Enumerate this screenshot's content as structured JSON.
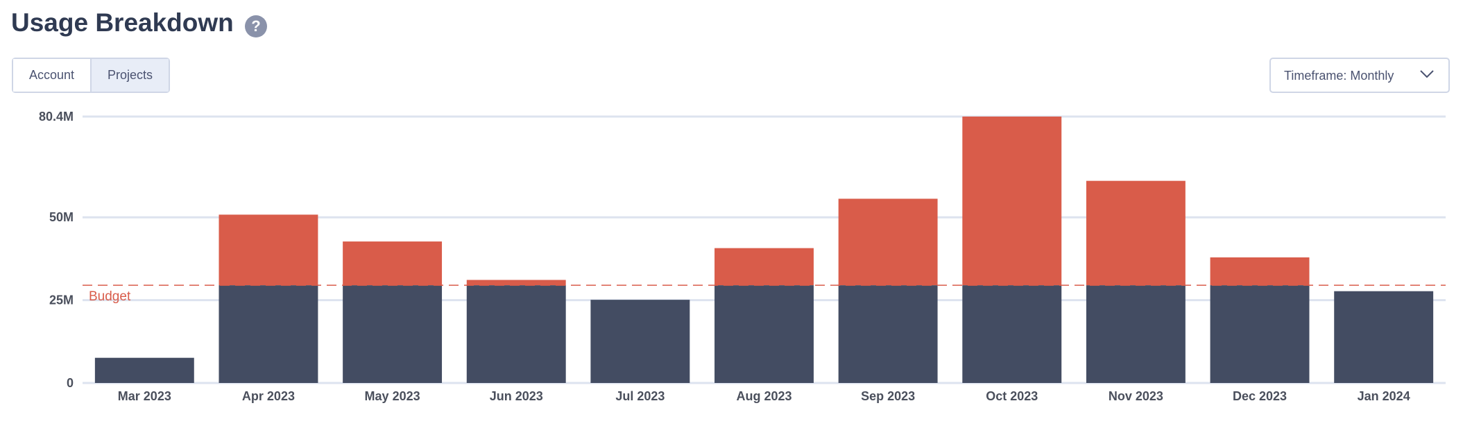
{
  "header": {
    "title": "Usage Breakdown",
    "help": "?"
  },
  "tabs": {
    "items": [
      "Account",
      "Projects"
    ],
    "selected": 1
  },
  "timeframe": "Timeframe: Monthly",
  "chart_data": {
    "type": "stacked-bar",
    "categories": [
      "Mar 2023",
      "Apr 2023",
      "May 2023",
      "Jun 2023",
      "Jul 2023",
      "Aug 2023",
      "Sep 2023",
      "Oct 2023",
      "Nov 2023",
      "Dec 2023",
      "Jan 2024"
    ],
    "series": [
      {
        "color": "#434c62",
        "values": [
          7.6,
          29.5,
          29.5,
          29.5,
          25.1,
          29.5,
          29.5,
          29.5,
          29.5,
          29.5,
          27.7
        ]
      },
      {
        "color": "#d95c4a",
        "values": [
          null,
          21.3,
          13.2,
          1.6,
          null,
          11.2,
          26.1,
          50.9,
          31.5,
          8.4,
          null
        ]
      }
    ],
    "ylim": [
      0,
      80.4
    ],
    "yticks": [
      0,
      {
        "value": 25,
        "label": "25M"
      },
      {
        "value": 50,
        "label": "50M"
      },
      {
        "value": 80.4,
        "label": "80.4M"
      }
    ],
    "grid": true,
    "budget": 29.5,
    "budget_label": "Budget",
    "budget_color": "#d95c4a"
  }
}
